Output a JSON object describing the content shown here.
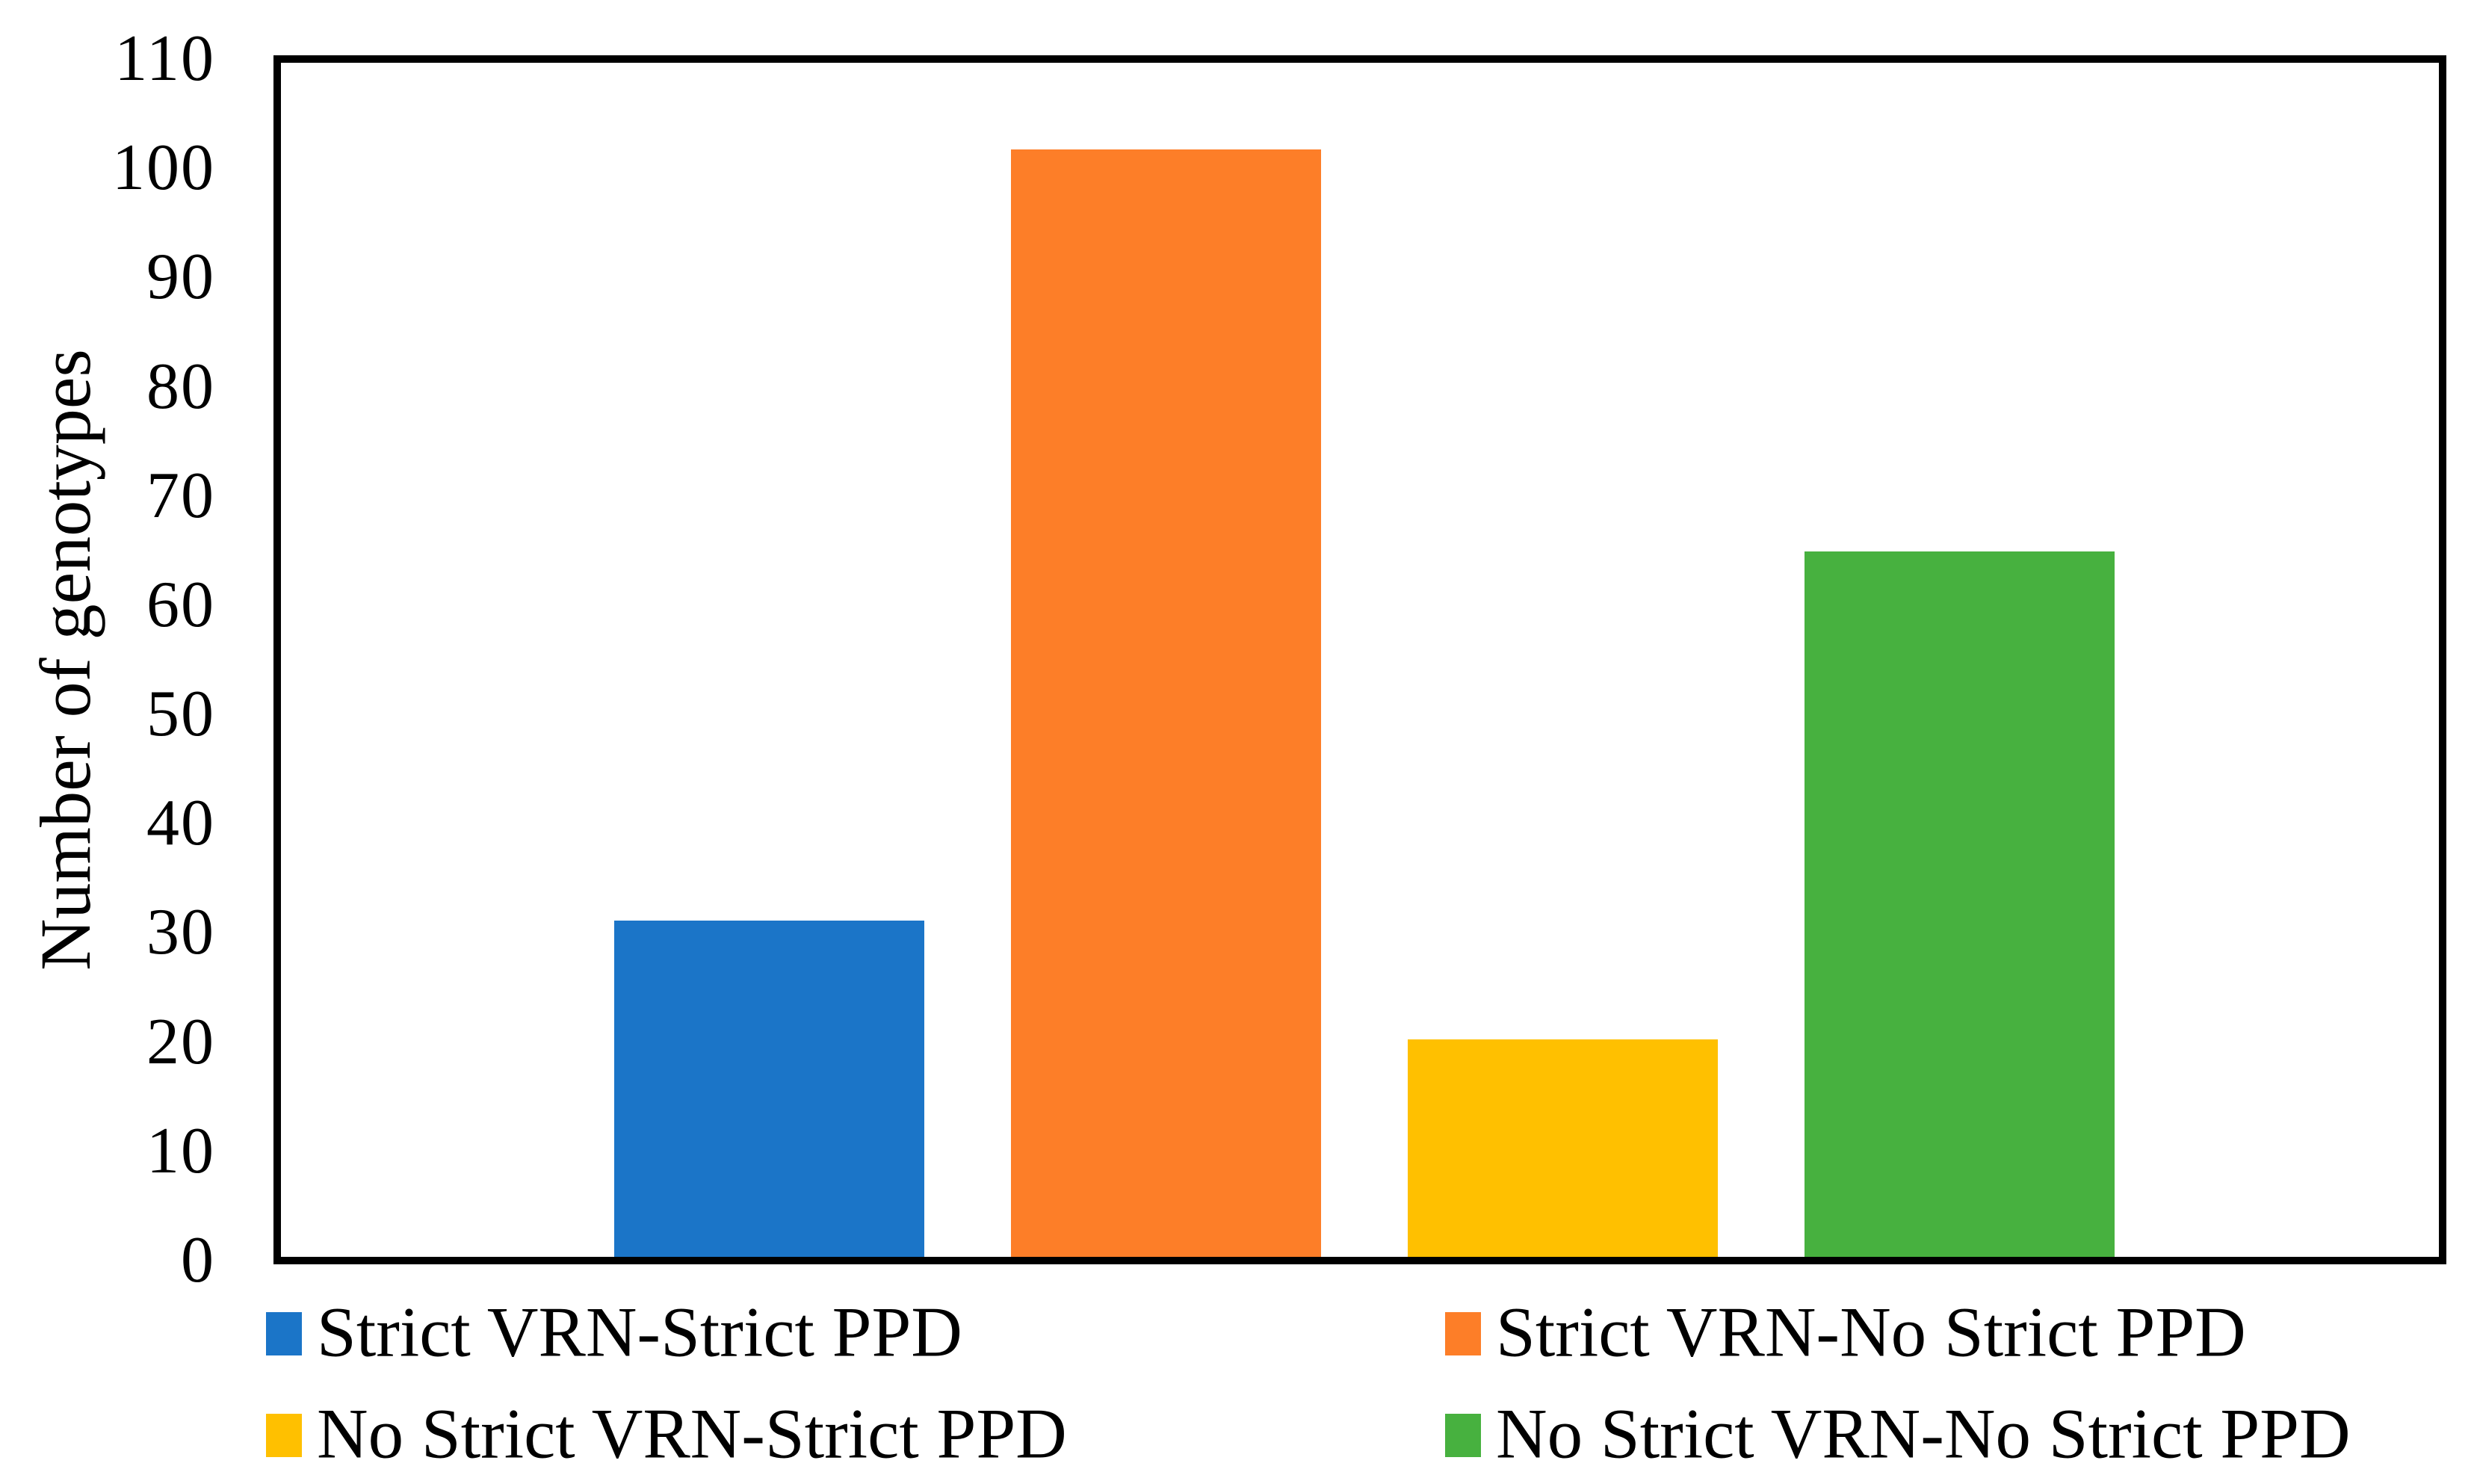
{
  "figure": {
    "background": "#FFFFFF",
    "text_color": "#000000"
  },
  "chart_data": {
    "type": "bar",
    "title": "",
    "xlabel": "",
    "ylabel": "Number of genotypes",
    "ylim": [
      0,
      110
    ],
    "yticks": [
      0,
      10,
      20,
      30,
      40,
      50,
      60,
      70,
      80,
      90,
      100,
      110
    ],
    "grid": false,
    "plot_border": true,
    "legend_position": "bottom-two-columns",
    "categories": [
      "Strict VRN-Strict PPD",
      "Strict VRN-No Strict PPD",
      "No Strict VRN-Strict PPD",
      "No Strict VRN-No Strict PPD"
    ],
    "values": [
      31,
      102,
      20,
      65
    ],
    "colors": [
      "#1B75C8",
      "#FD7E28",
      "#FFC000",
      "#47B13F"
    ],
    "legend": [
      {
        "label": "Strict VRN-Strict PPD",
        "color": "#1B75C8",
        "row": 0,
        "col": 0
      },
      {
        "label": "Strict VRN-No Strict PPD",
        "color": "#FD7E28",
        "row": 0,
        "col": 1
      },
      {
        "label": "No Strict VRN-Strict PPD",
        "color": "#FFC000",
        "row": 1,
        "col": 0
      },
      {
        "label": "No Strict VRN-No Strict PPD",
        "color": "#47B13F",
        "row": 1,
        "col": 1
      }
    ]
  }
}
